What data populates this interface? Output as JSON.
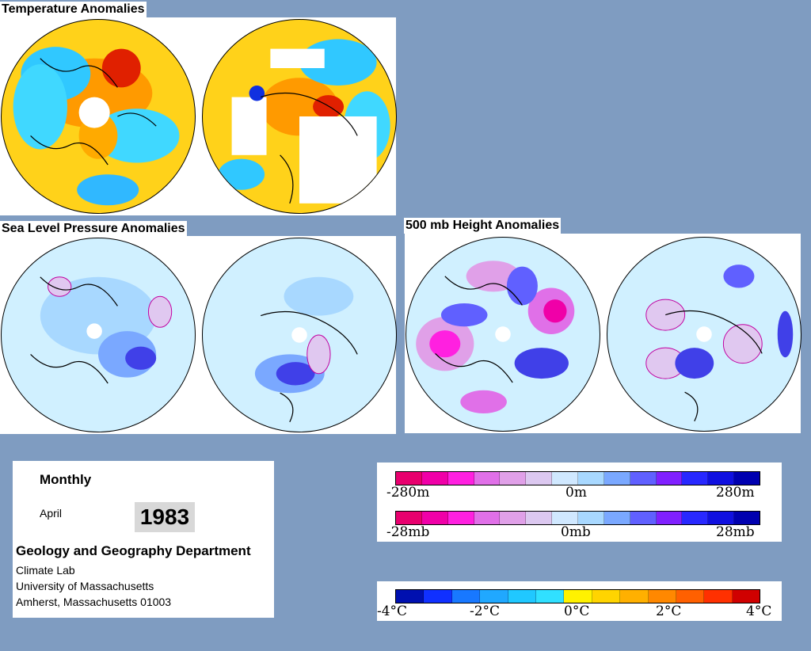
{
  "titles": {
    "temperature": "Temperature Anomalies",
    "slp": "Sea Level Pressure Anomalies",
    "height500": "500 mb Height Anomalies"
  },
  "info": {
    "period": "Monthly",
    "month": "April",
    "year": "1983",
    "department": "Geology and Geography Department",
    "lab": "Climate Lab",
    "university": "University of Massachusetts",
    "address": "Amherst, Massachusetts 01003"
  },
  "legend_height_pressure": {
    "colors": [
      "#e8006e",
      "#f000a8",
      "#ff20e0",
      "#e070e8",
      "#e0a0e8",
      "#dcc8f0",
      "#d0e8ff",
      "#a8d8ff",
      "#7aa8ff",
      "#6060ff",
      "#8020ff",
      "#2828ff",
      "#1010e0",
      "#0000b0"
    ],
    "height_labels": [
      "-280m",
      "0m",
      "280m"
    ],
    "pressure_labels": [
      "-28mb",
      "0mb",
      "28mb"
    ]
  },
  "legend_temperature": {
    "colors": [
      "#0010b0",
      "#1030ff",
      "#1878ff",
      "#20a8ff",
      "#20c8ff",
      "#30e0ff",
      "#fff200",
      "#ffd400",
      "#ffb000",
      "#ff8800",
      "#ff6000",
      "#ff3000",
      "#d00000"
    ],
    "labels": [
      "-4°C",
      "-2°C",
      "0°C",
      "2°C",
      "4°C"
    ]
  },
  "colors": {
    "background": "#7f9cc1",
    "warm": "#ff8c00",
    "cold": "#1e90ff",
    "high": "#ff00cc",
    "low": "#2020e0"
  }
}
